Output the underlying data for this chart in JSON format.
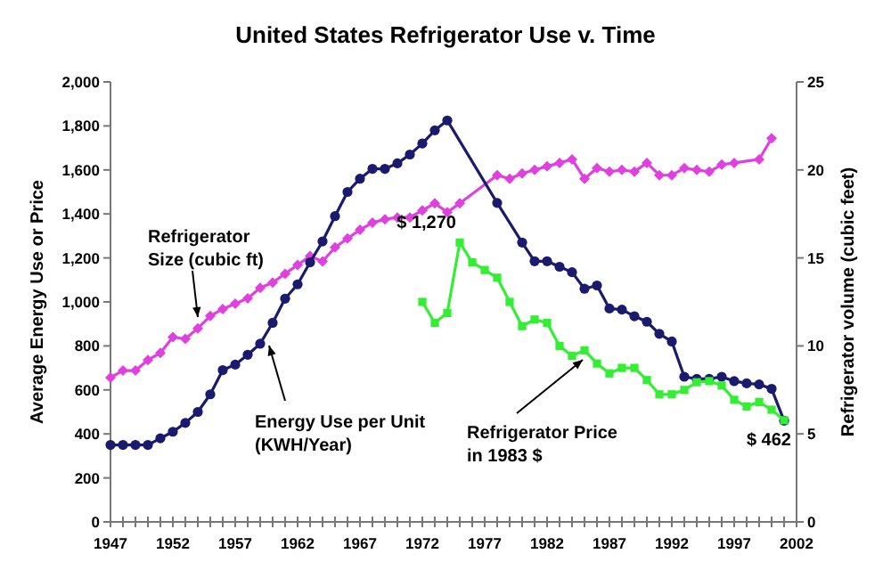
{
  "chart_data": {
    "type": "line",
    "title": "United States Refrigerator Use v. Time",
    "ylabel": "Average Energy Use or Price",
    "y2label": "Refrigerator volume (cubic feet)",
    "xlim": [
      1947,
      2002
    ],
    "xticks": [
      1947,
      {
        "value": 1948,
        "label": null
      },
      {
        "value": 1949,
        "label": null
      },
      {
        "value": 1950,
        "label": null
      },
      {
        "value": 1951,
        "label": null
      },
      1952,
      {
        "value": 1953,
        "label": null
      },
      {
        "value": 1954,
        "label": null
      },
      {
        "value": 1955,
        "label": null
      },
      {
        "value": 1956,
        "label": null
      },
      1957,
      {
        "value": 1958,
        "label": null
      },
      {
        "value": 1959,
        "label": null
      },
      {
        "value": 1960,
        "label": null
      },
      {
        "value": 1961,
        "label": null
      },
      1962,
      {
        "value": 1963,
        "label": null
      },
      {
        "value": 1964,
        "label": null
      },
      {
        "value": 1965,
        "label": null
      },
      {
        "value": 1966,
        "label": null
      },
      1967,
      {
        "value": 1968,
        "label": null
      },
      {
        "value": 1969,
        "label": null
      },
      {
        "value": 1970,
        "label": null
      },
      {
        "value": 1971,
        "label": null
      },
      1972,
      {
        "value": 1973,
        "label": null
      },
      {
        "value": 1974,
        "label": null
      },
      {
        "value": 1975,
        "label": null
      },
      {
        "value": 1976,
        "label": null
      },
      1977,
      {
        "value": 1978,
        "label": null
      },
      {
        "value": 1979,
        "label": null
      },
      {
        "value": 1980,
        "label": null
      },
      {
        "value": 1981,
        "label": null
      },
      1982,
      {
        "value": 1983,
        "label": null
      },
      {
        "value": 1984,
        "label": null
      },
      {
        "value": 1985,
        "label": null
      },
      {
        "value": 1986,
        "label": null
      },
      1987,
      {
        "value": 1988,
        "label": null
      },
      {
        "value": 1989,
        "label": null
      },
      {
        "value": 1990,
        "label": null
      },
      {
        "value": 1991,
        "label": null
      },
      1992,
      {
        "value": 1993,
        "label": null
      },
      {
        "value": 1994,
        "label": null
      },
      {
        "value": 1995,
        "label": null
      },
      {
        "value": 1996,
        "label": null
      },
      1997,
      {
        "value": 1998,
        "label": null
      },
      {
        "value": 1999,
        "label": null
      },
      {
        "value": 2000,
        "label": null
      },
      {
        "value": 2001,
        "label": null
      },
      2002
    ],
    "ylim": [
      0,
      2000
    ],
    "yticks": [
      0,
      200,
      400,
      600,
      800,
      {
        "value": 1000,
        "label": "1,000"
      },
      {
        "value": 1200,
        "label": "1,200"
      },
      {
        "value": 1400,
        "label": "1,400"
      },
      {
        "value": 1600,
        "label": "1,600"
      },
      {
        "value": 1800,
        "label": "1,800"
      },
      {
        "value": 2000,
        "label": "2,000"
      }
    ],
    "y2lim": [
      0,
      25
    ],
    "y2ticks": [
      0,
      5,
      10,
      15,
      20,
      25
    ],
    "grid": false,
    "series": [
      {
        "name": "Refrigerator Size (cubic ft)",
        "color": "#e040e0",
        "axis": "y2",
        "marker": "diamond",
        "x": [
          1947,
          1948,
          1949,
          1950,
          1951,
          1952,
          1953,
          1954,
          1955,
          1956,
          1957,
          1958,
          1959,
          1960,
          1961,
          1962,
          1963,
          1964,
          1965,
          1966,
          1967,
          1968,
          1969,
          1970,
          1971,
          1972,
          1973,
          1974,
          1975,
          1978,
          1979,
          1980,
          1981,
          1982,
          1983,
          1984,
          1985,
          1986,
          1987,
          1988,
          1989,
          1990,
          1991,
          1992,
          1993,
          1994,
          1995,
          1996,
          1997,
          1999,
          2000
        ],
        "values": [
          8.2,
          8.6,
          8.6,
          9.2,
          9.6,
          10.5,
          10.4,
          11.0,
          11.7,
          12.1,
          12.4,
          12.7,
          13.3,
          13.6,
          14.1,
          14.6,
          15.1,
          14.8,
          15.6,
          16.1,
          16.6,
          17.0,
          17.2,
          17.3,
          17.3,
          17.7,
          18.1,
          17.6,
          18.1,
          19.7,
          19.5,
          19.8,
          20.0,
          20.2,
          20.4,
          20.6,
          19.5,
          20.1,
          19.9,
          20.0,
          19.9,
          20.4,
          19.7,
          19.7,
          20.1,
          20.0,
          19.9,
          20.3,
          20.4,
          20.6,
          21.8
        ]
      },
      {
        "name": "Energy Use per Unit (KWH/Year)",
        "color": "#1a1a6e",
        "marker": "circle",
        "x": [
          1947,
          1948,
          1949,
          1950,
          1951,
          1952,
          1953,
          1954,
          1955,
          1956,
          1957,
          1958,
          1959,
          1960,
          1961,
          1962,
          1963,
          1964,
          1965,
          1966,
          1967,
          1968,
          1969,
          1970,
          1971,
          1972,
          1973,
          1974,
          1978,
          1980,
          1981,
          1982,
          1983,
          1984,
          1985,
          1986,
          1987,
          1988,
          1989,
          1990,
          1991,
          1992,
          1993,
          1994,
          1995,
          1996,
          1997,
          1998,
          1999,
          2000,
          2001
        ],
        "values": [
          350,
          350,
          350,
          350,
          380,
          410,
          450,
          500,
          580,
          690,
          715,
          760,
          810,
          905,
          1015,
          1080,
          1180,
          1275,
          1390,
          1500,
          1560,
          1605,
          1605,
          1630,
          1670,
          1720,
          1780,
          1825,
          1450,
          1270,
          1185,
          1185,
          1160,
          1135,
          1060,
          1075,
          970,
          965,
          935,
          910,
          855,
          820,
          660,
          650,
          650,
          660,
          640,
          630,
          625,
          605,
          460
        ]
      },
      {
        "name": "Refrigerator Price in 1983 $",
        "color": "#33ee33",
        "marker": "square",
        "x": [
          1972,
          1973,
          1974,
          1975,
          1976,
          1977,
          1978,
          1979,
          1980,
          1981,
          1982,
          1983,
          1984,
          1985,
          1986,
          1987,
          1988,
          1989,
          1990,
          1991,
          1992,
          1993,
          1994,
          1995,
          1996,
          1997,
          1998,
          1999,
          2000,
          2001
        ],
        "values": [
          1000,
          905,
          950,
          1270,
          1180,
          1145,
          1110,
          1000,
          890,
          920,
          905,
          800,
          755,
          780,
          720,
          675,
          700,
          700,
          645,
          580,
          580,
          600,
          635,
          640,
          620,
          555,
          525,
          545,
          510,
          462
        ]
      }
    ],
    "annotations": [
      {
        "text": "$ 1,270",
        "x": 1975,
        "y": 1270
      },
      {
        "text": "$ 462",
        "x": 2001,
        "y": 462
      }
    ]
  }
}
